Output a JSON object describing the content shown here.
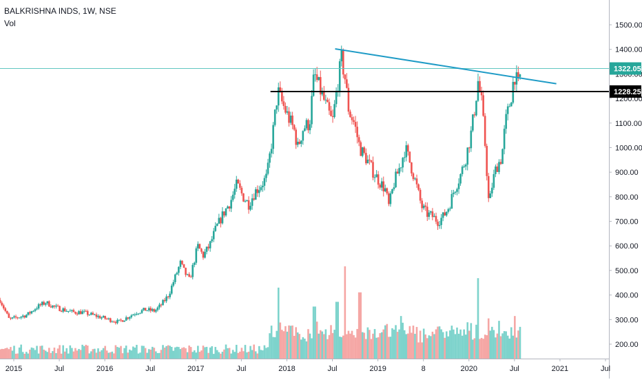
{
  "header": {
    "symbol_line": "BALKRISHNA INDS, 1W, NSE",
    "volume_label": "Vol"
  },
  "colors": {
    "up": "#26a69a",
    "down": "#ef5350",
    "volume_up": "#7dd3cc",
    "volume_down": "#f5a6a4",
    "trendline": "#1e9bc6",
    "support_line": "#000000",
    "current_price_line": "#5fc6c0",
    "current_price_badge": "#26a69a",
    "support_badge": "#000000",
    "axis_text": "#131722",
    "axis_border": "#b2b5be"
  },
  "chart_data": {
    "type": "candlestick",
    "title": "BALKRISHNA INDS, 1W, NSE",
    "ylim": [
      150,
      1560
    ],
    "y_ticks": [
      {
        "value": 200,
        "label": "200.00"
      },
      {
        "value": 300,
        "label": "300.00"
      },
      {
        "value": 400,
        "label": "400.00"
      },
      {
        "value": 500,
        "label": "500.00"
      },
      {
        "value": 600,
        "label": "600.00"
      },
      {
        "value": 700,
        "label": "700.00"
      },
      {
        "value": 800,
        "label": "800.00"
      },
      {
        "value": 900,
        "label": "900.00"
      },
      {
        "value": 1000,
        "label": "1000.00"
      },
      {
        "value": 1100,
        "label": "1100.00"
      },
      {
        "value": 1200,
        "label": "1200.00"
      },
      {
        "value": 1300,
        "label": "1300.00"
      },
      {
        "value": 1400,
        "label": "1400.00"
      },
      {
        "value": 1500,
        "label": "1500.00"
      }
    ],
    "x_ticks": [
      {
        "t": 2015.0,
        "label": "2015"
      },
      {
        "t": 2015.5,
        "label": "Jul"
      },
      {
        "t": 2016.0,
        "label": "2016"
      },
      {
        "t": 2016.5,
        "label": "Jul"
      },
      {
        "t": 2017.0,
        "label": "2017"
      },
      {
        "t": 2017.5,
        "label": "Jul"
      },
      {
        "t": 2018.0,
        "label": "2018"
      },
      {
        "t": 2018.5,
        "label": "Jul"
      },
      {
        "t": 2019.0,
        "label": "2019"
      },
      {
        "t": 2019.5,
        "label": "8"
      },
      {
        "t": 2020.0,
        "label": "2020"
      },
      {
        "t": 2020.5,
        "label": "Jul"
      },
      {
        "t": 2021.0,
        "label": "2021"
      },
      {
        "t": 2021.5,
        "label": "Jul"
      }
    ],
    "price_path": [
      [
        2014.85,
        380
      ],
      [
        2014.95,
        300
      ],
      [
        2015.05,
        310
      ],
      [
        2015.15,
        320
      ],
      [
        2015.25,
        350
      ],
      [
        2015.35,
        370
      ],
      [
        2015.45,
        350
      ],
      [
        2015.55,
        340
      ],
      [
        2015.65,
        330
      ],
      [
        2015.75,
        330
      ],
      [
        2015.85,
        320
      ],
      [
        2015.95,
        310
      ],
      [
        2016.05,
        300
      ],
      [
        2016.15,
        290
      ],
      [
        2016.25,
        310
      ],
      [
        2016.35,
        330
      ],
      [
        2016.45,
        340
      ],
      [
        2016.55,
        335
      ],
      [
        2016.62,
        360
      ],
      [
        2016.7,
        400
      ],
      [
        2016.77,
        470
      ],
      [
        2016.83,
        530
      ],
      [
        2016.88,
        490
      ],
      [
        2016.93,
        460
      ],
      [
        2016.97,
        520
      ],
      [
        2017.02,
        600
      ],
      [
        2017.08,
        560
      ],
      [
        2017.15,
        600
      ],
      [
        2017.22,
        670
      ],
      [
        2017.3,
        730
      ],
      [
        2017.38,
        780
      ],
      [
        2017.45,
        850
      ],
      [
        2017.52,
        800
      ],
      [
        2017.58,
        770
      ],
      [
        2017.65,
        820
      ],
      [
        2017.72,
        850
      ],
      [
        2017.78,
        880
      ],
      [
        2017.84,
        1040
      ],
      [
        2017.9,
        1230
      ],
      [
        2017.95,
        1180
      ],
      [
        2018.02,
        1120
      ],
      [
        2018.08,
        1070
      ],
      [
        2018.12,
        1000
      ],
      [
        2018.18,
        1080
      ],
      [
        2018.25,
        1100
      ],
      [
        2018.3,
        1300
      ],
      [
        2018.35,
        1250
      ],
      [
        2018.4,
        1200
      ],
      [
        2018.45,
        1150
      ],
      [
        2018.5,
        1100
      ],
      [
        2018.55,
        1240
      ],
      [
        2018.6,
        1360
      ],
      [
        2018.64,
        1280
      ],
      [
        2018.68,
        1150
      ],
      [
        2018.74,
        1100
      ],
      [
        2018.8,
        1000
      ],
      [
        2018.88,
        950
      ],
      [
        2018.95,
        900
      ],
      [
        2019.02,
        860
      ],
      [
        2019.08,
        830
      ],
      [
        2019.12,
        760
      ],
      [
        2019.18,
        860
      ],
      [
        2019.25,
        930
      ],
      [
        2019.3,
        1000
      ],
      [
        2019.36,
        930
      ],
      [
        2019.42,
        850
      ],
      [
        2019.48,
        760
      ],
      [
        2019.54,
        730
      ],
      [
        2019.6,
        720
      ],
      [
        2019.66,
        700
      ],
      [
        2019.72,
        720
      ],
      [
        2019.78,
        760
      ],
      [
        2019.84,
        830
      ],
      [
        2019.9,
        880
      ],
      [
        2019.96,
        950
      ],
      [
        2020.02,
        1050
      ],
      [
        2020.06,
        1150
      ],
      [
        2020.1,
        1270
      ],
      [
        2020.14,
        1180
      ],
      [
        2020.18,
        1000
      ],
      [
        2020.22,
        760
      ],
      [
        2020.26,
        860
      ],
      [
        2020.3,
        920
      ],
      [
        2020.36,
        960
      ],
      [
        2020.4,
        1100
      ],
      [
        2020.46,
        1200
      ],
      [
        2020.5,
        1300
      ],
      [
        2020.54,
        1250
      ],
      [
        2020.58,
        1322
      ]
    ],
    "volume_axis_max": 800,
    "volume_spikes": [
      {
        "t": 2017.9,
        "value": 300
      },
      {
        "t": 2018.3,
        "value": 220
      },
      {
        "t": 2018.64,
        "value": 390
      },
      {
        "t": 2018.55,
        "value": 240
      },
      {
        "t": 2018.8,
        "value": 280
      },
      {
        "t": 2019.25,
        "value": 180
      },
      {
        "t": 2020.1,
        "value": 340
      },
      {
        "t": 2020.22,
        "value": 170
      },
      {
        "t": 2020.5,
        "value": 180
      }
    ],
    "trendline": {
      "start": [
        2018.53,
        1402
      ],
      "end": [
        2020.96,
        1260
      ]
    },
    "support_line": {
      "value": 1228.25,
      "start_t": 2017.82
    },
    "current_price": {
      "value": 1322.05,
      "label": "1322.05"
    },
    "support_label": "1228.25",
    "grid": false
  }
}
